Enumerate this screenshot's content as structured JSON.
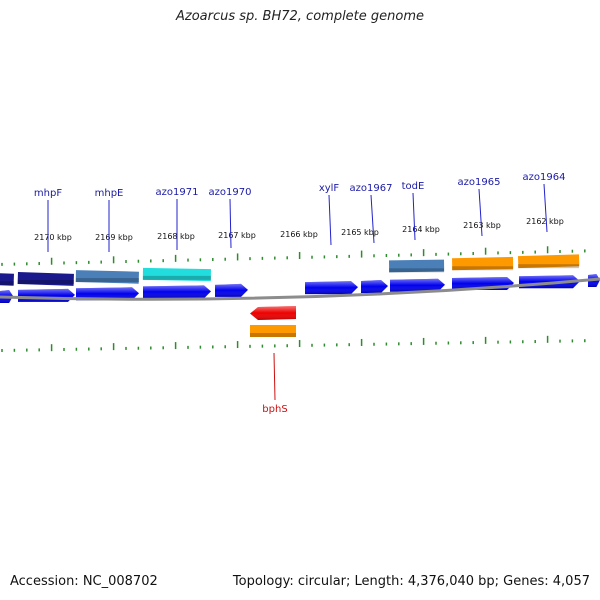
{
  "title": "Azoarcus sp. BH72, complete genome",
  "footer": {
    "accession": "Accession: NC_008702",
    "summary": "Topology: circular; Length: 4,376,040 bp; Genes: 4,057"
  },
  "colors": {
    "backbone": "#8c8c8c",
    "tick": "#2e8b2e",
    "cds": "#0000ee",
    "forward_label": "#1a1aa6",
    "reverse_label": "#cc1111"
  },
  "kbp_labels": [
    "2170 kbp",
    "2169 kbp",
    "2168 kbp",
    "2167 kbp",
    "2166 kbp",
    "2165 kbp",
    "2164 kbp",
    "2163 kbp",
    "2162 kbp"
  ],
  "genes_forward": [
    {
      "name": "mhpF",
      "color": "#1a1a8c"
    },
    {
      "name": "mhpE",
      "color": "#4a7fb8"
    },
    {
      "name": "azo1971",
      "color": "#22dddd"
    },
    {
      "name": "azo1970",
      "color": "#0000ee"
    },
    {
      "name": "xylF",
      "color": "#0000ee"
    },
    {
      "name": "azo1967",
      "color": "#0000ee"
    },
    {
      "name": "todE",
      "color": "#4a7fb8"
    },
    {
      "name": "azo1965",
      "color": "#ff9900"
    },
    {
      "name": "azo1964",
      "color": "#ff9900"
    }
  ],
  "genes_reverse": [
    {
      "name": "bphS",
      "color": "#ee0000"
    }
  ]
}
